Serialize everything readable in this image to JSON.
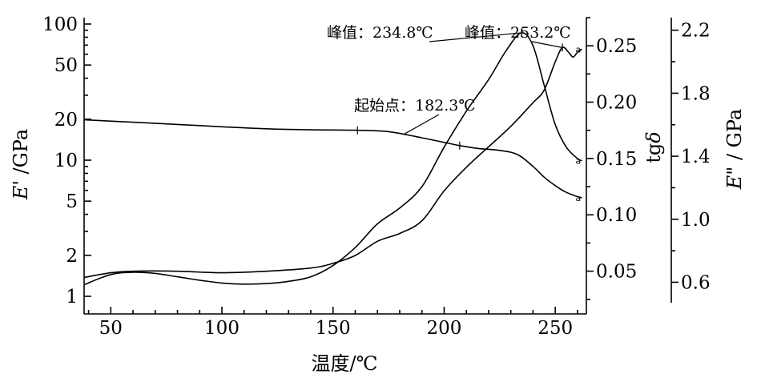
{
  "chart_data": {
    "type": "line",
    "xlabel": "温度/℃",
    "x_axis": {
      "range": [
        38,
        264
      ],
      "ticks": [
        50,
        100,
        150,
        200,
        250
      ],
      "tick_labels": [
        "50",
        "100",
        "150",
        "200",
        "250"
      ]
    },
    "y_axes": {
      "left": {
        "label_italic": "E",
        "label_rest": "' /GPa",
        "scale": "log",
        "range": [
          1,
          100
        ],
        "ticks": [
          1,
          2,
          5,
          10,
          20,
          50,
          100
        ],
        "tick_labels": [
          "1",
          "2",
          "5",
          "10",
          "20",
          "50",
          "100"
        ]
      },
      "right1": {
        "label_rest": "tg",
        "label_italic": "δ",
        "scale": "linear",
        "range": [
          0.022,
          0.275
        ],
        "ticks": [
          0.05,
          0.1,
          0.15,
          0.2,
          0.25
        ],
        "tick_labels": [
          "0.05",
          "0.10",
          "0.15",
          "0.20",
          "0.25"
        ]
      },
      "right2": {
        "label_italic": "E",
        "label_rest": "\" / GPa",
        "scale": "linear",
        "range": [
          0.47,
          2.28
        ],
        "ticks": [
          0.6,
          1.0,
          1.4,
          1.8,
          2.2
        ],
        "tick_labels": [
          "0.6",
          "1.0",
          "1.4",
          "1.8",
          "2.2"
        ]
      }
    },
    "series": [
      {
        "id": "storage-modulus",
        "axis": "left",
        "tag": "a",
        "points": [
          [
            38,
            19.8
          ],
          [
            60,
            19.0
          ],
          [
            80,
            18.3
          ],
          [
            100,
            17.6
          ],
          [
            120,
            17.0
          ],
          [
            140,
            16.7
          ],
          [
            160,
            16.6
          ],
          [
            175,
            16.2
          ],
          [
            190,
            14.6
          ],
          [
            200,
            13.5
          ],
          [
            207,
            12.8
          ],
          [
            215,
            12.2
          ],
          [
            225,
            11.8
          ],
          [
            233,
            11.0
          ],
          [
            240,
            9.0
          ],
          [
            245,
            7.5
          ],
          [
            250,
            6.5
          ],
          [
            255,
            5.8
          ],
          [
            260,
            5.4
          ],
          [
            262,
            5.3
          ]
        ]
      },
      {
        "id": "tan-delta",
        "axis": "right1",
        "tag": "a",
        "points": [
          [
            38,
            0.038
          ],
          [
            50,
            0.047
          ],
          [
            60,
            0.049
          ],
          [
            70,
            0.048
          ],
          [
            80,
            0.045
          ],
          [
            90,
            0.042
          ],
          [
            100,
            0.0395
          ],
          [
            110,
            0.0385
          ],
          [
            120,
            0.039
          ],
          [
            130,
            0.041
          ],
          [
            140,
            0.045
          ],
          [
            150,
            0.055
          ],
          [
            160,
            0.071
          ],
          [
            170,
            0.092
          ],
          [
            180,
            0.106
          ],
          [
            190,
            0.125
          ],
          [
            200,
            0.16
          ],
          [
            210,
            0.192
          ],
          [
            220,
            0.22
          ],
          [
            228,
            0.246
          ],
          [
            234.8,
            0.2615
          ],
          [
            240,
            0.25
          ],
          [
            245,
            0.215
          ],
          [
            250,
            0.18
          ],
          [
            255,
            0.16
          ],
          [
            260,
            0.15
          ],
          [
            262,
            0.148
          ]
        ]
      },
      {
        "id": "loss-modulus",
        "axis": "right2",
        "tag": "a",
        "points": [
          [
            38,
            0.63
          ],
          [
            50,
            0.66
          ],
          [
            60,
            0.67
          ],
          [
            80,
            0.67
          ],
          [
            100,
            0.66
          ],
          [
            120,
            0.67
          ],
          [
            140,
            0.69
          ],
          [
            150,
            0.72
          ],
          [
            160,
            0.77
          ],
          [
            170,
            0.86
          ],
          [
            180,
            0.91
          ],
          [
            190,
            0.99
          ],
          [
            200,
            1.18
          ],
          [
            210,
            1.33
          ],
          [
            220,
            1.46
          ],
          [
            230,
            1.59
          ],
          [
            240,
            1.74
          ],
          [
            245,
            1.82
          ],
          [
            250,
            2.0
          ],
          [
            253.2,
            2.09
          ],
          [
            256,
            2.06
          ],
          [
            258,
            2.03
          ],
          [
            260,
            2.06
          ],
          [
            262,
            2.08
          ]
        ]
      }
    ],
    "annotations": [
      {
        "id": "onset",
        "text": "起始点：182.3℃"
      },
      {
        "id": "peak-tan-delta",
        "text": "峰值：234.8℃"
      },
      {
        "id": "peak-loss-modulus",
        "text": "峰值：253.2℃"
      }
    ],
    "grid": false
  }
}
